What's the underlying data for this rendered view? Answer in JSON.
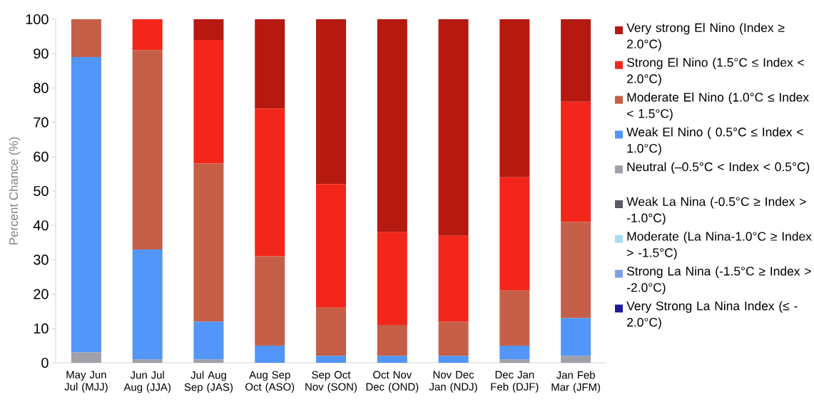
{
  "chart_data": {
    "type": "bar",
    "stacked": true,
    "ylabel": "Percent Chance (%)",
    "categories": [
      "May Jun Jul (MJJ)",
      "Jun Jul Aug (JJA)",
      "Jul Aug Sep (JAS)",
      "Aug Sep Oct (ASO)",
      "Sep Oct Nov (SON)",
      "Oct Nov Dec (OND)",
      "Nov Dec Jan (NDJ)",
      "Dec Jan Feb (DJF)",
      "Jan Feb Mar (JFM)"
    ],
    "ylim": [
      0,
      100
    ],
    "yticks": [
      0,
      10,
      20,
      30,
      40,
      50,
      60,
      70,
      80,
      90,
      100
    ],
    "legend": "right",
    "series": [
      {
        "name": "Very Strong La Nina Index (≤ -2.0°C)",
        "color": "#1a1a9a",
        "values": [
          0,
          0,
          0,
          0,
          0,
          0,
          0,
          0,
          0
        ]
      },
      {
        "name": "Strong La Nina (-1.5°C ≥ Index > -2.0°C)",
        "color": "#7f9ee8",
        "values": [
          0,
          0,
          0,
          0,
          0,
          0,
          0,
          0,
          0
        ]
      },
      {
        "name": "Moderate (La Nina-1.0°C ≥ Index > -1.5°C)",
        "color": "#aadcf5",
        "values": [
          0,
          0,
          0,
          0,
          0,
          0,
          0,
          0,
          0
        ]
      },
      {
        "name": "Weak La Nina (-0.5°C ≥ Index > -1.0°C)",
        "color": "#5a5a66",
        "values": [
          0,
          0,
          0,
          0,
          0,
          0,
          0,
          0,
          0
        ]
      },
      {
        "name": "Neutral (–0.5°C < Index < 0.5°C)",
        "color": "#a09fa8",
        "values": [
          3,
          1,
          1,
          0,
          0,
          0,
          0,
          1,
          2
        ]
      },
      {
        "name": "Weak  El Nino ( 0.5°C ≤ Index < 1.0°C)",
        "color": "#5196f8",
        "values": [
          86,
          32,
          11,
          5,
          2,
          2,
          2,
          4,
          11
        ]
      },
      {
        "name": "Moderate El Nino (1.0°C ≤ Index < 1.5°C)",
        "color": "#c65f47",
        "values": [
          11,
          58,
          46,
          26,
          14,
          9,
          10,
          16,
          28
        ]
      },
      {
        "name": "Strong El Nino (1.5°C ≤ Index < 2.0°C)",
        "color": "#f2261a",
        "values": [
          0,
          9,
          36,
          43,
          36,
          27,
          25,
          33,
          35
        ]
      },
      {
        "name": "Very strong El Nino (Index ≥ 2.0°C)",
        "color": "#b5190f",
        "values": [
          0,
          0,
          6,
          26,
          48,
          62,
          63,
          46,
          24
        ]
      }
    ]
  }
}
